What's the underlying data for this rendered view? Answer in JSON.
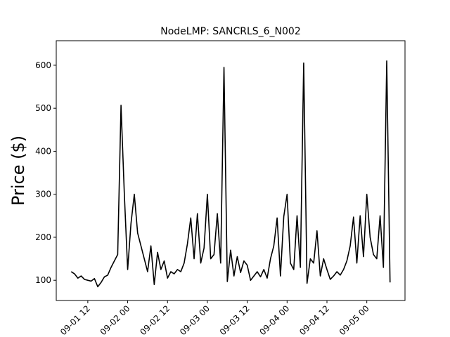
{
  "chart_data": {
    "type": "line",
    "title": "NodeLMP: SANCRLS_6_N002",
    "y_label": "Price ($)",
    "x": [
      "09-01 07",
      "09-01 08",
      "09-01 09",
      "09-01 10",
      "09-01 11",
      "09-01 12",
      "09-01 13",
      "09-01 14",
      "09-01 15",
      "09-01 16",
      "09-01 17",
      "09-01 18",
      "09-01 19",
      "09-01 20",
      "09-01 21",
      "09-01 22",
      "09-01 23",
      "09-02 00",
      "09-02 01",
      "09-02 02",
      "09-02 03",
      "09-02 04",
      "09-02 05",
      "09-02 06",
      "09-02 07",
      "09-02 08",
      "09-02 09",
      "09-02 10",
      "09-02 11",
      "09-02 12",
      "09-02 13",
      "09-02 14",
      "09-02 15",
      "09-02 16",
      "09-02 17",
      "09-02 18",
      "09-02 19",
      "09-02 20",
      "09-02 21",
      "09-02 22",
      "09-02 23",
      "09-03 00",
      "09-03 01",
      "09-03 02",
      "09-03 03",
      "09-03 04",
      "09-03 05",
      "09-03 06",
      "09-03 07",
      "09-03 08",
      "09-03 09",
      "09-03 10",
      "09-03 11",
      "09-03 12",
      "09-03 13",
      "09-03 14",
      "09-03 15",
      "09-03 16",
      "09-03 17",
      "09-03 18",
      "09-03 19",
      "09-03 20",
      "09-03 21",
      "09-03 22",
      "09-03 23",
      "09-04 00",
      "09-04 01",
      "09-04 02",
      "09-04 03",
      "09-04 04",
      "09-04 05",
      "09-04 06",
      "09-04 07",
      "09-04 08",
      "09-04 09",
      "09-04 10",
      "09-04 11",
      "09-04 12",
      "09-04 13",
      "09-04 14",
      "09-04 15",
      "09-04 16",
      "09-04 17",
      "09-04 18",
      "09-04 19",
      "09-04 20",
      "09-04 21",
      "09-04 22",
      "09-04 23",
      "09-05 00",
      "09-05 01",
      "09-05 02",
      "09-05 03",
      "09-05 04",
      "09-05 05",
      "09-05 06",
      "09-05 07"
    ],
    "series": [
      {
        "color": "#000000",
        "values": [
          120,
          115,
          105,
          110,
          102,
          100,
          98,
          104,
          85,
          95,
          108,
          112,
          130,
          145,
          160,
          507,
          300,
          125,
          232,
          300,
          210,
          180,
          150,
          120,
          180,
          90,
          165,
          125,
          145,
          105,
          120,
          115,
          125,
          120,
          140,
          185,
          245,
          150,
          255,
          140,
          175,
          300,
          150,
          160,
          255,
          140,
          595,
          97,
          170,
          110,
          155,
          118,
          145,
          135,
          100,
          110,
          120,
          108,
          125,
          105,
          150,
          180,
          245,
          110,
          248,
          300,
          140,
          125,
          250,
          130,
          605,
          93,
          150,
          140,
          215,
          110,
          150,
          125,
          102,
          110,
          120,
          112,
          125,
          145,
          180,
          247,
          140,
          250,
          155,
          300,
          200,
          160,
          150,
          250,
          130,
          610,
          95
        ]
      }
    ],
    "xlim": [
      "09-01 02:30",
      "09-05 11:30"
    ],
    "xticks": [
      "09-01 12",
      "09-02 00",
      "09-02 12",
      "09-03 00",
      "09-03 12",
      "09-04 00",
      "09-04 12",
      "09-05 00"
    ],
    "ylim": [
      53,
      657
    ],
    "yticks": [
      100,
      200,
      300,
      400,
      500,
      600
    ]
  }
}
